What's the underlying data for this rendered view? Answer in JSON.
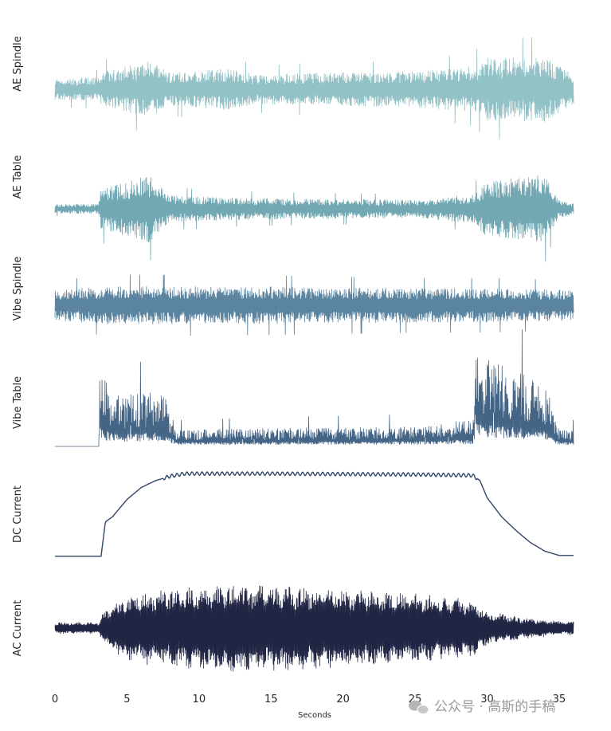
{
  "chart_data": {
    "type": "line",
    "xlabel": "Seconds",
    "xlim": [
      0,
      36
    ],
    "xticks": [
      0,
      5,
      10,
      15,
      20,
      25,
      30,
      35
    ],
    "xtick_labels": [
      "0",
      "5",
      "10",
      "15",
      "20",
      "25",
      "30",
      "35"
    ],
    "grid": false,
    "legend": "none",
    "series": [
      {
        "name": "AE Spindle",
        "color": "#92c1c6",
        "kind": "noisy-signal",
        "envelope": [
          [
            0,
            0.3
          ],
          [
            3,
            0.33
          ],
          [
            3.5,
            0.5
          ],
          [
            6.5,
            0.78
          ],
          [
            8,
            0.45
          ],
          [
            12,
            0.58
          ],
          [
            14,
            0.4
          ],
          [
            18,
            0.45
          ],
          [
            25,
            0.5
          ],
          [
            29,
            0.62
          ],
          [
            30,
            0.85
          ],
          [
            34,
            0.9
          ],
          [
            36,
            0.4
          ]
        ]
      },
      {
        "name": "AE Table",
        "color": "#72a8b3",
        "kind": "noisy-signal",
        "envelope": [
          [
            0,
            0.12
          ],
          [
            3,
            0.14
          ],
          [
            3.2,
            0.55
          ],
          [
            6.5,
            0.9
          ],
          [
            8,
            0.35
          ],
          [
            14,
            0.28
          ],
          [
            25,
            0.24
          ],
          [
            29,
            0.38
          ],
          [
            30,
            0.75
          ],
          [
            34,
            0.9
          ],
          [
            35,
            0.25
          ],
          [
            36,
            0.15
          ]
        ]
      },
      {
        "name": "Vibe Spindle",
        "color": "#5a84a0",
        "kind": "noisy-signal",
        "envelope": [
          [
            0,
            0.5
          ],
          [
            4,
            0.62
          ],
          [
            15,
            0.6
          ],
          [
            25,
            0.55
          ],
          [
            30,
            0.55
          ],
          [
            36,
            0.5
          ]
        ]
      },
      {
        "name": "Vibe Table",
        "color": "#456587",
        "kind": "noisy-signal",
        "envelope": [
          [
            0,
            0
          ],
          [
            3.05,
            0
          ],
          [
            3.1,
            0.9
          ],
          [
            4,
            0.55
          ],
          [
            7.5,
            0.6
          ],
          [
            8.5,
            0.18
          ],
          [
            15,
            0.2
          ],
          [
            25,
            0.22
          ],
          [
            29,
            0.3
          ],
          [
            29.2,
            1.0
          ],
          [
            34,
            0.7
          ],
          [
            35,
            0.2
          ],
          [
            36,
            0.18
          ]
        ]
      },
      {
        "name": "DC Current",
        "color": "#324567",
        "kind": "smooth-signal",
        "points": [
          [
            0,
            0.02
          ],
          [
            3.2,
            0.02
          ],
          [
            3.5,
            0.42
          ],
          [
            4,
            0.48
          ],
          [
            5,
            0.68
          ],
          [
            6,
            0.82
          ],
          [
            7,
            0.9
          ],
          [
            8,
            0.95
          ],
          [
            9,
            0.98
          ],
          [
            15,
            0.98
          ],
          [
            25,
            0.97
          ],
          [
            29,
            0.96
          ],
          [
            29.5,
            0.9
          ],
          [
            30,
            0.7
          ],
          [
            31,
            0.48
          ],
          [
            32,
            0.32
          ],
          [
            33,
            0.18
          ],
          [
            34,
            0.08
          ],
          [
            35,
            0.03
          ],
          [
            36,
            0.03
          ]
        ]
      },
      {
        "name": "AC Current",
        "color": "#202544",
        "kind": "oscillating-signal",
        "envelope": [
          [
            0,
            0.12
          ],
          [
            3,
            0.12
          ],
          [
            3.3,
            0.3
          ],
          [
            5,
            0.7
          ],
          [
            8,
            0.8
          ],
          [
            13,
            0.9
          ],
          [
            20,
            0.8
          ],
          [
            25,
            0.7
          ],
          [
            29,
            0.6
          ],
          [
            30,
            0.35
          ],
          [
            33,
            0.2
          ],
          [
            36,
            0.14
          ]
        ]
      }
    ]
  },
  "watermark": {
    "text": "公众号 · 高斯的手稿",
    "icon": "wechat-icon"
  }
}
